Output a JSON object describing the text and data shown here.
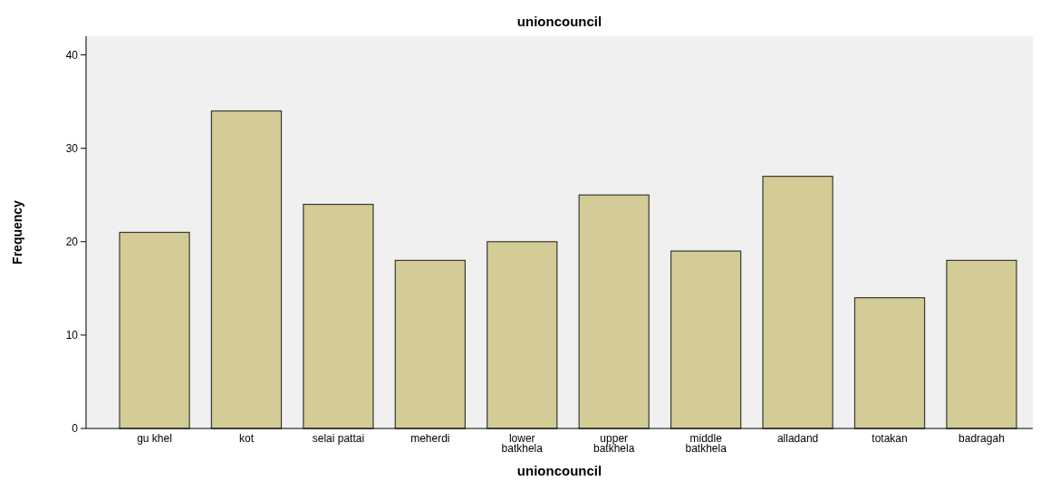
{
  "chart_data": {
    "type": "bar",
    "title": "unioncouncil",
    "xlabel": "unioncouncil",
    "ylabel": "Frequency",
    "categories": [
      "gu khel",
      "kot",
      "selai pattai",
      "meherdi",
      "lower batkhela",
      "upper batkhela",
      "middle batkhela",
      "alladand",
      "totakan",
      "badragah"
    ],
    "values": [
      21,
      34,
      24,
      18,
      20,
      25,
      19,
      27,
      14,
      18
    ],
    "color": "#d3cc96",
    "ylim": [
      0,
      42
    ],
    "yticks": [
      0,
      10,
      20,
      30,
      40
    ],
    "grid": false
  }
}
